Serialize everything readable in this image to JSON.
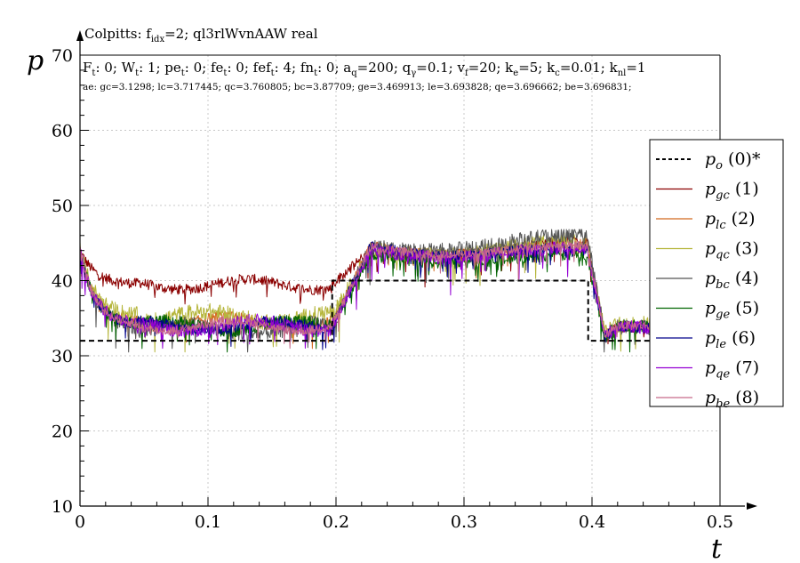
{
  "chart_data": {
    "type": "line",
    "title": "Colpitts: f_idx=2; ql3rlWvnAAW real",
    "title_parts": {
      "pre": "Colpitts: f",
      "sub": "idx",
      "post": "=2; ql3rlWvnAAW real"
    },
    "params_line": [
      {
        "t": "F"
      },
      {
        "s": "t"
      },
      {
        "t": ": 0; W"
      },
      {
        "s": "t"
      },
      {
        "t": ": 1; pe"
      },
      {
        "s": "t"
      },
      {
        "t": ": 0; fe"
      },
      {
        "s": "t"
      },
      {
        "t": ": 0; fef"
      },
      {
        "s": "t"
      },
      {
        "t": ": 4; fn"
      },
      {
        "s": "t"
      },
      {
        "t": ": 0; a"
      },
      {
        "s": "q"
      },
      {
        "t": "=200; q"
      },
      {
        "s": "γ"
      },
      {
        "t": "=0.1; v"
      },
      {
        "s": "f"
      },
      {
        "t": "=20; k"
      },
      {
        "s": "e"
      },
      {
        "t": "=5; k"
      },
      {
        "s": "c"
      },
      {
        "t": "=0.01; k"
      },
      {
        "s": "nl"
      },
      {
        "t": "=1"
      }
    ],
    "ae_line": "ae: gc=3.1298; lc=3.717445; qc=3.760805; bc=3.87709; ge=3.469913; le=3.693828; qe=3.696662; be=3.696831;",
    "xlabel": "t",
    "ylabel": "p",
    "xlim": [
      0,
      0.5
    ],
    "ylim": [
      10,
      70
    ],
    "xticks": [
      "0",
      "0.1",
      "0.2",
      "0.3",
      "0.4",
      "0.5"
    ],
    "yticks": [
      "10",
      "20",
      "30",
      "40",
      "50",
      "60",
      "70"
    ],
    "grid": true,
    "legend_position": "right",
    "setpoint": {
      "name": "p_o (0)*",
      "sym": "p",
      "sub": "o",
      "idx": "(0)*",
      "color": "#000000",
      "style": "dashed",
      "x": [
        0,
        0.197,
        0.197,
        0.397,
        0.397,
        0.45
      ],
      "y": [
        32,
        32,
        40,
        40,
        32,
        32
      ]
    },
    "series": [
      {
        "name": "p_gc (1)",
        "sym": "p",
        "sub": "gc",
        "idx": "(1)",
        "color": "#8b0000",
        "base": [
          38.5,
          39.5,
          42.0,
          44.5,
          32.5,
          33.8
        ],
        "noise": 0.7
      },
      {
        "name": "p_lc (2)",
        "sym": "p",
        "sub": "lc",
        "idx": "(2)",
        "color": "#d2691e",
        "base": [
          38.0,
          34.5,
          42.5,
          44.0,
          32.5,
          34.0
        ],
        "noise": 0.7
      },
      {
        "name": "p_qc (3)",
        "sym": "p",
        "sub": "qc",
        "idx": "(3)",
        "color": "#b5b53a",
        "base": [
          37.5,
          35.2,
          42.0,
          44.5,
          33.0,
          34.2
        ],
        "noise": 1.1
      },
      {
        "name": "p_bc (4)",
        "sym": "p",
        "sub": "bc",
        "idx": "(4)",
        "color": "#555555",
        "base": [
          38.5,
          33.6,
          42.5,
          45.5,
          32.5,
          33.8
        ],
        "noise": 1.0
      },
      {
        "name": "p_ge (5)",
        "sym": "p",
        "sub": "ge",
        "idx": "(5)",
        "color": "#006400",
        "base": [
          39.0,
          34.0,
          41.5,
          42.5,
          32.5,
          34.0
        ],
        "noise": 0.8
      },
      {
        "name": "p_le (6)",
        "sym": "p",
        "sub": "le",
        "idx": "(6)",
        "color": "#00008b",
        "base": [
          38.0,
          34.0,
          42.5,
          43.5,
          32.5,
          33.8
        ],
        "noise": 0.7
      },
      {
        "name": "p_qe (7)",
        "sym": "p",
        "sub": "qe",
        "idx": "(7)",
        "color": "#9400d3",
        "base": [
          38.0,
          34.0,
          42.0,
          43.5,
          32.8,
          33.8
        ],
        "noise": 0.9
      },
      {
        "name": "p_be (8)",
        "sym": "p",
        "sub": "be",
        "idx": "(8)",
        "color": "#c76b8a",
        "base": [
          38.0,
          34.0,
          42.5,
          43.8,
          32.8,
          34.0
        ],
        "noise": 0.6
      }
    ]
  }
}
